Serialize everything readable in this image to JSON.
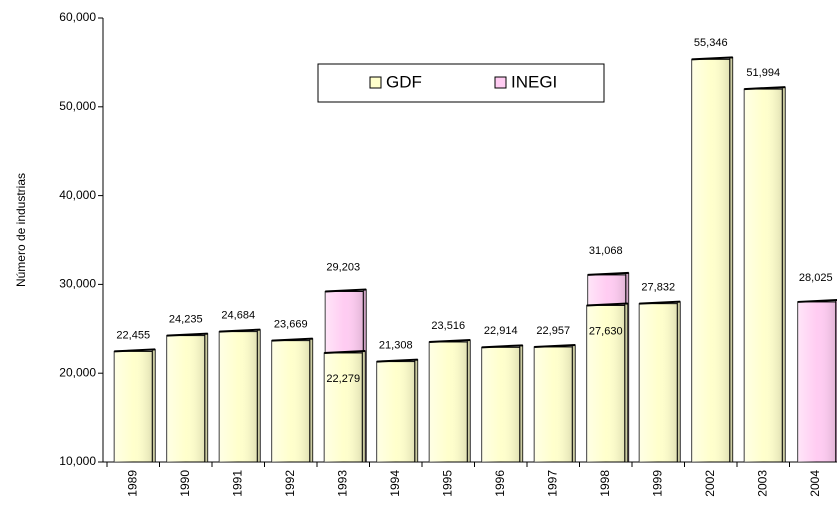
{
  "chart_data": {
    "type": "bar",
    "y_axis_label": "Número de industrias",
    "categories": [
      "1989",
      "1990",
      "1991",
      "1992",
      "1993",
      "1994",
      "1995",
      "1996",
      "1997",
      "1998",
      "1999",
      "2002",
      "2003",
      "2004"
    ],
    "series": [
      {
        "name": "GDF",
        "color": "#ffffcc",
        "values": [
          22455,
          24235,
          24684,
          23669,
          22279,
          21308,
          23516,
          22914,
          22957,
          27630,
          27832,
          55346,
          51994,
          null
        ],
        "value_labels": [
          "22,455",
          "24,235",
          "24,684",
          "23,669",
          "22,279",
          "21,308",
          "23,516",
          "22,914",
          "22,957",
          "27,630",
          "27,832",
          "55,346",
          "51,994",
          null
        ]
      },
      {
        "name": "INEGI",
        "color": "#ffccf2",
        "values": [
          null,
          null,
          null,
          null,
          29203,
          null,
          null,
          null,
          null,
          31068,
          null,
          null,
          null,
          28025
        ],
        "value_labels": [
          null,
          null,
          null,
          null,
          "29,203",
          null,
          null,
          null,
          null,
          "31,068",
          null,
          null,
          null,
          "28,025"
        ]
      }
    ],
    "ylim": [
      10000,
      60000
    ],
    "yticks": [
      {
        "value": 10000,
        "label": "10,000"
      },
      {
        "value": 20000,
        "label": "20,000"
      },
      {
        "value": 30000,
        "label": "30,000"
      },
      {
        "value": 40000,
        "label": "40,000"
      },
      {
        "value": 50000,
        "label": "50,000"
      },
      {
        "value": 60000,
        "label": "60,000"
      }
    ],
    "legend": "top"
  }
}
